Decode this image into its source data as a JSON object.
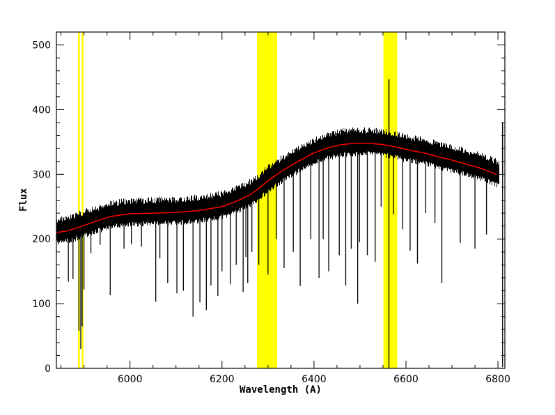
{
  "chart_data": {
    "type": "line",
    "title": "",
    "xlabel": "Wavelength (A)",
    "ylabel": "Flux",
    "xlim": [
      5840,
      6815
    ],
    "ylim": [
      0,
      520
    ],
    "x_ticks": [
      6000,
      6200,
      6400,
      6600,
      6800
    ],
    "x_tick_labels": [
      "6000",
      "6200",
      "6400",
      "6600",
      "6800"
    ],
    "y_ticks": [
      0,
      100,
      200,
      300,
      400,
      500
    ],
    "y_tick_labels": [
      "0",
      "100",
      "200",
      "300",
      "400",
      "500"
    ],
    "grid": false,
    "legend": "none",
    "highlight_bands": [
      {
        "x0": 5887,
        "x1": 5891,
        "color": "#ffff00"
      },
      {
        "x0": 5895,
        "x1": 5899,
        "color": "#ffff00"
      },
      {
        "x0": 6276,
        "x1": 6320,
        "color": "#ffff00"
      },
      {
        "x0": 6551,
        "x1": 6581,
        "color": "#ffff00"
      }
    ],
    "series": [
      {
        "color": "#000000",
        "x": [
          5840,
          5860,
          5880,
          5900,
          5920,
          5940,
          5960,
          5980,
          6000,
          6050,
          6100,
          6150,
          6200,
          6230,
          6260,
          6280,
          6300,
          6330,
          6360,
          6400,
          6430,
          6460,
          6490,
          6520,
          6550,
          6580,
          6610,
          6640,
          6670,
          6700,
          6730,
          6760,
          6790,
          6810
        ],
        "y": [
          210,
          212,
          216,
          221,
          226,
          231,
          235,
          237,
          239,
          240,
          241,
          244,
          250,
          258,
          268,
          278,
          290,
          305,
          318,
          333,
          341,
          346,
          348,
          348,
          346,
          342,
          337,
          333,
          327,
          322,
          316,
          310,
          302,
          296
        ],
        "noise_band": [
          -20,
          25
        ],
        "absorption_lines": [
          {
            "x": 5866,
            "y": 134
          },
          {
            "x": 5876,
            "y": 138
          },
          {
            "x": 5889,
            "y": 58
          },
          {
            "x": 5893,
            "y": 30
          },
          {
            "x": 5896,
            "y": 65
          },
          {
            "x": 5900,
            "y": 122
          },
          {
            "x": 5915,
            "y": 178
          },
          {
            "x": 5935,
            "y": 191
          },
          {
            "x": 5957,
            "y": 113
          },
          {
            "x": 5987,
            "y": 185
          },
          {
            "x": 6003,
            "y": 192
          },
          {
            "x": 6025,
            "y": 188
          },
          {
            "x": 6056,
            "y": 103
          },
          {
            "x": 6065,
            "y": 170
          },
          {
            "x": 6082,
            "y": 132
          },
          {
            "x": 6102,
            "y": 116
          },
          {
            "x": 6116,
            "y": 120
          },
          {
            "x": 6137,
            "y": 80
          },
          {
            "x": 6152,
            "y": 102
          },
          {
            "x": 6166,
            "y": 90
          },
          {
            "x": 6176,
            "y": 128
          },
          {
            "x": 6191,
            "y": 112
          },
          {
            "x": 6200,
            "y": 150
          },
          {
            "x": 6218,
            "y": 130
          },
          {
            "x": 6231,
            "y": 160
          },
          {
            "x": 6246,
            "y": 118
          },
          {
            "x": 6252,
            "y": 172
          },
          {
            "x": 6256,
            "y": 132
          },
          {
            "x": 6265,
            "y": 180
          },
          {
            "x": 6280,
            "y": 160
          },
          {
            "x": 6300,
            "y": 145
          },
          {
            "x": 6318,
            "y": 200
          },
          {
            "x": 6335,
            "y": 155
          },
          {
            "x": 6355,
            "y": 180
          },
          {
            "x": 6370,
            "y": 127
          },
          {
            "x": 6393,
            "y": 200
          },
          {
            "x": 6411,
            "y": 140
          },
          {
            "x": 6420,
            "y": 200
          },
          {
            "x": 6432,
            "y": 150
          },
          {
            "x": 6455,
            "y": 175
          },
          {
            "x": 6469,
            "y": 128
          },
          {
            "x": 6481,
            "y": 185
          },
          {
            "x": 6495,
            "y": 100
          },
          {
            "x": 6499,
            "y": 195
          },
          {
            "x": 6516,
            "y": 175
          },
          {
            "x": 6533,
            "y": 165
          },
          {
            "x": 6546,
            "y": 250
          },
          {
            "x": 6563,
            "y": 0
          },
          {
            "x": 6573,
            "y": 238
          },
          {
            "x": 6593,
            "y": 215
          },
          {
            "x": 6609,
            "y": 182
          },
          {
            "x": 6625,
            "y": 162
          },
          {
            "x": 6643,
            "y": 240
          },
          {
            "x": 6663,
            "y": 225
          },
          {
            "x": 6678,
            "y": 132
          },
          {
            "x": 6718,
            "y": 194
          },
          {
            "x": 6750,
            "y": 185
          },
          {
            "x": 6775,
            "y": 207
          },
          {
            "x": 6810,
            "y": 2
          }
        ],
        "emission_lines": [
          {
            "x": 6563,
            "y": 447
          },
          {
            "x": 6810,
            "y": 380
          }
        ]
      },
      {
        "color": "#ff0000",
        "x": [
          5840,
          5860,
          5880,
          5900,
          5920,
          5940,
          5960,
          5980,
          6000,
          6050,
          6100,
          6150,
          6200,
          6230,
          6260,
          6280,
          6300,
          6330,
          6360,
          6400,
          6430,
          6460,
          6490,
          6520,
          6550,
          6580,
          6610,
          6640,
          6670,
          6700,
          6730,
          6760,
          6790,
          6810
        ],
        "y": [
          210,
          212,
          216,
          221,
          226,
          231,
          235,
          237,
          239,
          240,
          241,
          244,
          250,
          258,
          268,
          278,
          290,
          305,
          318,
          333,
          341,
          346,
          348,
          348,
          346,
          342,
          337,
          333,
          327,
          322,
          316,
          310,
          302,
          296
        ]
      }
    ]
  }
}
